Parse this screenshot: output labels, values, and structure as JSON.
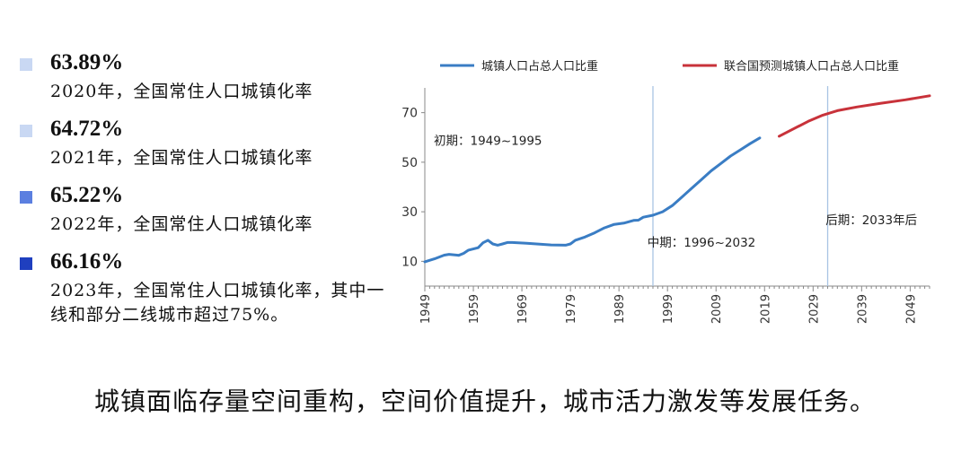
{
  "stats": [
    {
      "value": "63.89%",
      "desc": "2020年，全国常住人口城镇化率",
      "color": "#c9d8f3"
    },
    {
      "value": "64.72%",
      "desc": "2021年，全国常住人口城镇化率",
      "color": "#c9d8f3"
    },
    {
      "value": "65.22%",
      "desc": "2022年，全国常住人口城镇化率",
      "color": "#5b7fe0"
    },
    {
      "value": "66.16%",
      "desc": "2023年，全国常住人口城镇化率，其中一线和部分二线城市超过75%。",
      "color": "#1f3fbf"
    }
  ],
  "caption": "城镇面临存量空间重构，空间价值提升，城市活力激发等发展任务。",
  "chart_data": {
    "type": "line",
    "xlim": [
      1949,
      2053
    ],
    "ylim": [
      0,
      80
    ],
    "x_ticks": [
      "1949",
      "1959",
      "1969",
      "1979",
      "1989",
      "1999",
      "2009",
      "2019",
      "2029",
      "2039",
      "2049"
    ],
    "y_ticks": [
      "10",
      "30",
      "50",
      "70"
    ],
    "vlines": [
      1996,
      2032
    ],
    "period_labels": [
      {
        "text": "初期：1949~1995",
        "x": 1962,
        "y": 57
      },
      {
        "text": "中期：1996~2032",
        "x": 2006,
        "y": 16
      },
      {
        "text": "后期：2033年后",
        "x": 2041,
        "y": 25
      }
    ],
    "series": [
      {
        "name": "城镇人口占总人口比重",
        "color": "#3a7dc4",
        "points": [
          [
            1949,
            9.8
          ],
          [
            1951,
            11.0
          ],
          [
            1953,
            12.5
          ],
          [
            1954,
            12.8
          ],
          [
            1956,
            12.4
          ],
          [
            1957,
            13.2
          ],
          [
            1958,
            14.5
          ],
          [
            1960,
            15.5
          ],
          [
            1961,
            17.5
          ],
          [
            1962,
            18.5
          ],
          [
            1963,
            17.0
          ],
          [
            1964,
            16.5
          ],
          [
            1965,
            17.0
          ],
          [
            1966,
            17.6
          ],
          [
            1967,
            17.6
          ],
          [
            1970,
            17.3
          ],
          [
            1975,
            16.6
          ],
          [
            1978,
            16.5
          ],
          [
            1979,
            17.0
          ],
          [
            1980,
            18.5
          ],
          [
            1982,
            19.8
          ],
          [
            1984,
            21.5
          ],
          [
            1986,
            23.5
          ],
          [
            1988,
            24.9
          ],
          [
            1990,
            25.4
          ],
          [
            1992,
            26.5
          ],
          [
            1993,
            26.6
          ],
          [
            1994,
            27.8
          ],
          [
            1996,
            28.6
          ],
          [
            1998,
            30.0
          ],
          [
            2000,
            32.5
          ],
          [
            2002,
            36.0
          ],
          [
            2004,
            39.5
          ],
          [
            2006,
            43.0
          ],
          [
            2008,
            46.5
          ],
          [
            2010,
            49.5
          ],
          [
            2012,
            52.5
          ],
          [
            2014,
            55.0
          ],
          [
            2016,
            57.5
          ],
          [
            2018,
            59.8
          ]
        ]
      },
      {
        "name": "联合国预测城镇人口占总人口比重",
        "color": "#c8323a",
        "points": [
          [
            2022,
            60.5
          ],
          [
            2025,
            63.5
          ],
          [
            2028,
            66.5
          ],
          [
            2031,
            69.0
          ],
          [
            2034,
            70.8
          ],
          [
            2038,
            72.3
          ],
          [
            2043,
            73.8
          ],
          [
            2048,
            75.2
          ],
          [
            2053,
            76.8
          ]
        ]
      }
    ]
  }
}
